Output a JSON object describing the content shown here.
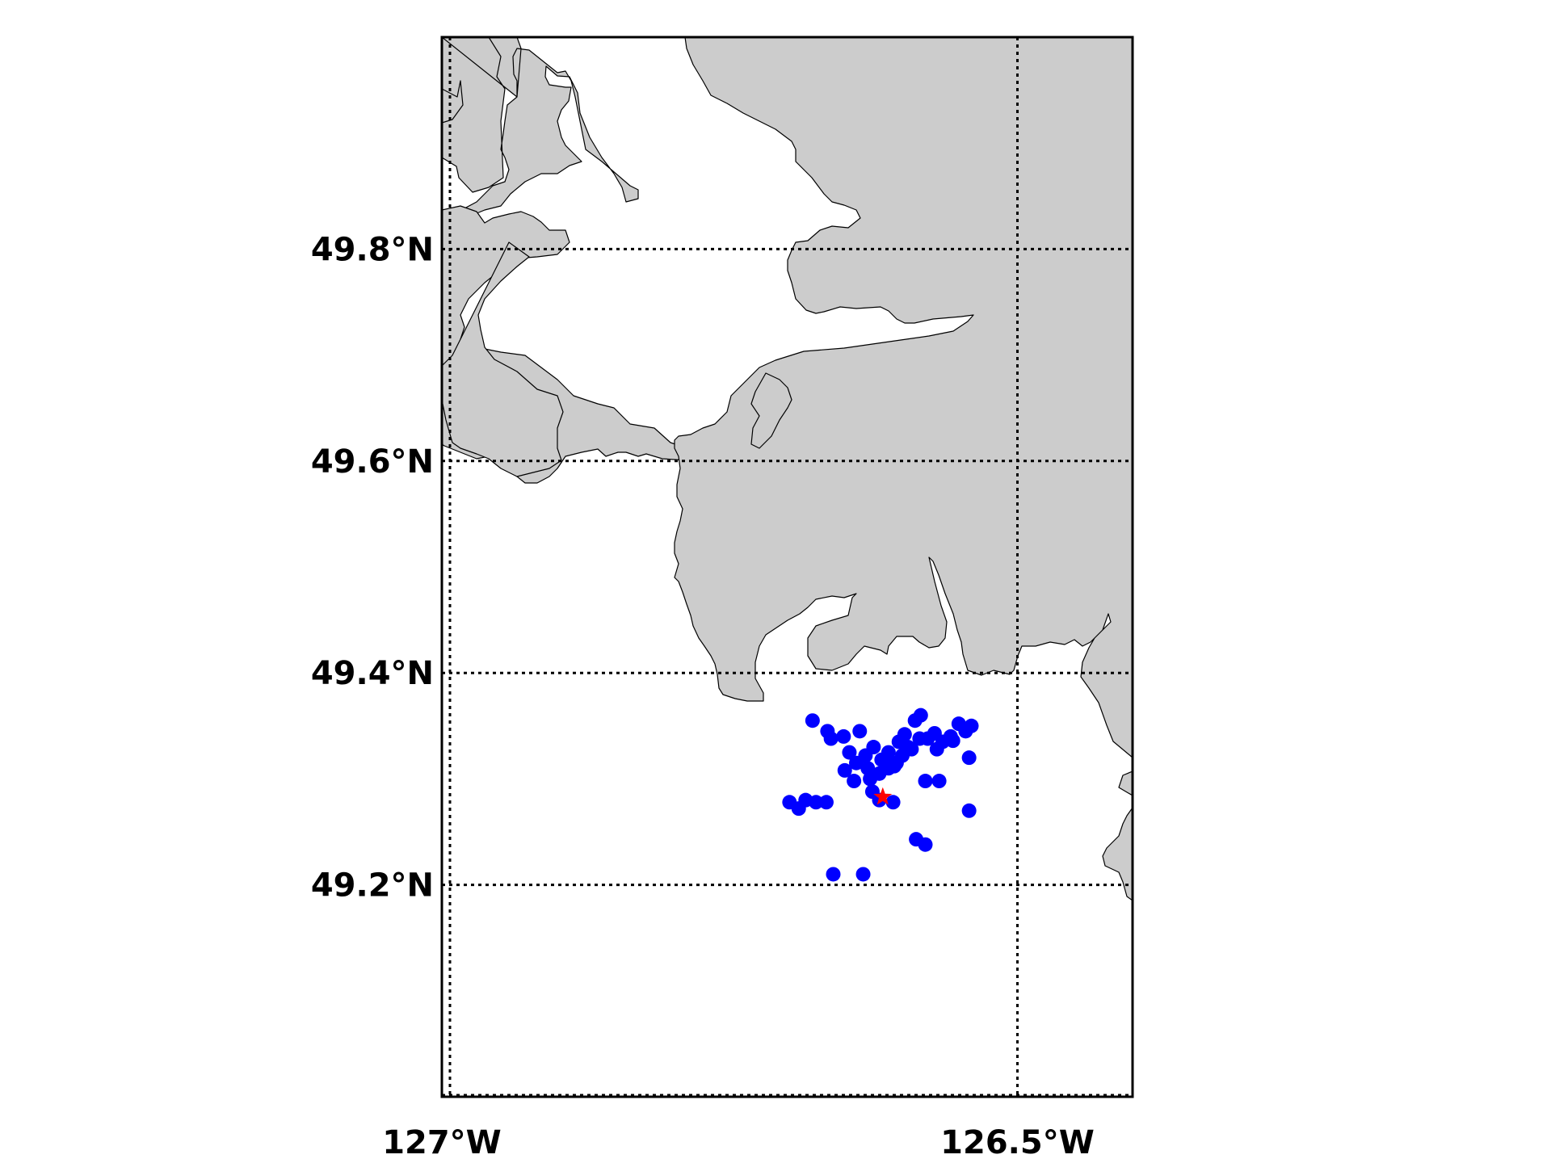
{
  "chart_data": {
    "type": "scatter",
    "title": "",
    "xlabel": "",
    "ylabel": "",
    "xlim": [
      -127.0,
      -126.4
    ],
    "ylim": [
      49.0,
      50.0
    ],
    "grid": true,
    "x_ticks": [
      {
        "value": -127.0,
        "label": "127°W"
      },
      {
        "value": -126.5,
        "label": "126.5°W"
      }
    ],
    "y_ticks": [
      {
        "value": 49.2,
        "label": "49.2°N"
      },
      {
        "value": 49.4,
        "label": "49.4°N"
      },
      {
        "value": 49.6,
        "label": "49.6°N"
      },
      {
        "value": 49.8,
        "label": "49.8°N"
      }
    ],
    "colors": {
      "land": "#cccccc",
      "points": "#0000ff",
      "epicenter": "#ff0000",
      "water": "#ffffff"
    },
    "series": [
      {
        "marker": "circle",
        "color": "#0000ff",
        "points": [
          [
            -126.678,
            49.355
          ],
          [
            -126.665,
            49.345
          ],
          [
            -126.662,
            49.338
          ],
          [
            -126.651,
            49.34
          ],
          [
            -126.637,
            49.345
          ],
          [
            -126.646,
            49.325
          ],
          [
            -126.64,
            49.315
          ],
          [
            -126.632,
            49.322
          ],
          [
            -126.625,
            49.33
          ],
          [
            -126.618,
            49.318
          ],
          [
            -126.612,
            49.325
          ],
          [
            -126.607,
            49.312
          ],
          [
            -126.603,
            49.335
          ],
          [
            -126.598,
            49.342
          ],
          [
            -126.592,
            49.328
          ],
          [
            -126.589,
            49.355
          ],
          [
            -126.584,
            49.36
          ],
          [
            -126.578,
            49.338
          ],
          [
            -126.572,
            49.343
          ],
          [
            -126.565,
            49.335
          ],
          [
            -126.558,
            49.34
          ],
          [
            -126.551,
            49.352
          ],
          [
            -126.545,
            49.345
          ],
          [
            -126.54,
            49.35
          ],
          [
            -126.542,
            49.32
          ],
          [
            -126.65,
            49.308
          ],
          [
            -126.642,
            49.298
          ],
          [
            -126.628,
            49.3
          ],
          [
            -126.62,
            49.305
          ],
          [
            -126.612,
            49.31
          ],
          [
            -126.626,
            49.288
          ],
          [
            -126.62,
            49.28
          ],
          [
            -126.608,
            49.278
          ],
          [
            -126.58,
            49.298
          ],
          [
            -126.568,
            49.298
          ],
          [
            -126.542,
            49.27
          ],
          [
            -126.698,
            49.278
          ],
          [
            -126.69,
            49.272
          ],
          [
            -126.684,
            49.28
          ],
          [
            -126.675,
            49.278
          ],
          [
            -126.666,
            49.278
          ],
          [
            -126.588,
            49.243
          ],
          [
            -126.58,
            49.238
          ],
          [
            -126.66,
            49.21
          ],
          [
            -126.634,
            49.21
          ],
          [
            -126.605,
            49.315
          ],
          [
            -126.595,
            49.33
          ],
          [
            -126.585,
            49.338
          ],
          [
            -126.57,
            49.328
          ],
          [
            -126.556,
            49.336
          ],
          [
            -126.63,
            49.31
          ],
          [
            -126.615,
            49.318
          ],
          [
            -126.6,
            49.322
          ]
        ]
      },
      {
        "marker": "star",
        "color": "#ff0000",
        "points": [
          [
            -126.617,
            49.283
          ]
        ]
      }
    ]
  }
}
